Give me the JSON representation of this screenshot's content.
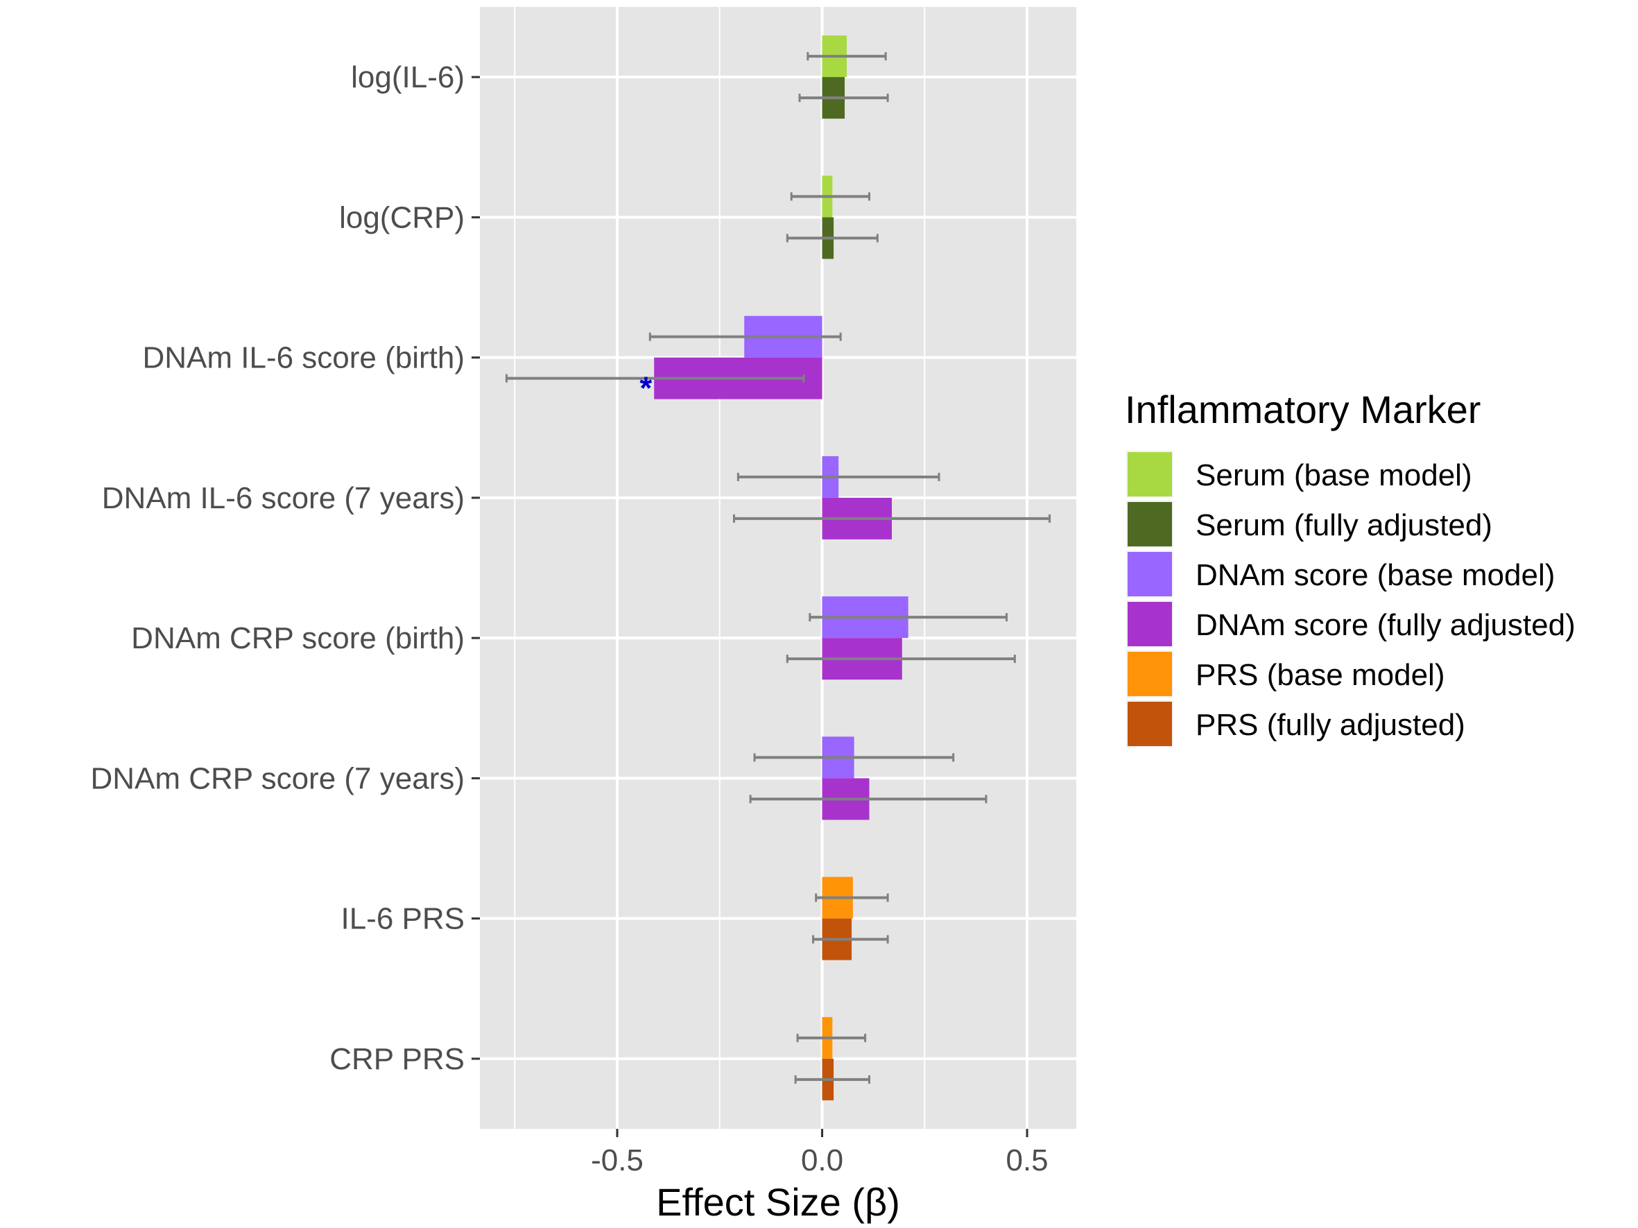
{
  "chart_data": {
    "type": "bar",
    "orientation": "horizontal",
    "xlabel": "Effect Size (β)",
    "ylabel": "",
    "xlim": [
      -0.835,
      0.62
    ],
    "xticks": [
      -0.5,
      0.0,
      0.5
    ],
    "xtick_labels": [
      "-0.5",
      "0.0",
      "0.5"
    ],
    "minor_xticks": [
      -0.75,
      -0.25,
      0.25
    ],
    "grid": true,
    "categories": [
      "log(IL-6)",
      "log(CRP)",
      "DNAm IL-6 score (birth)",
      "DNAm IL-6 score (7 years)",
      "DNAm CRP score (birth)",
      "DNAm CRP score (7 years)",
      "IL-6 PRS",
      "CRP PRS"
    ],
    "legend": {
      "title": "Inflammatory Marker",
      "position": "right",
      "items": [
        {
          "label": "Serum (base model)",
          "color": "#a8d943"
        },
        {
          "label": "Serum (fully adjusted)",
          "color": "#4e6a22"
        },
        {
          "label": "DNAm score (base model)",
          "color": "#9966ff"
        },
        {
          "label": "DNAm score (fully adjusted)",
          "color": "#a733cc"
        },
        {
          "label": "PRS (base model)",
          "color": "#ff9408"
        },
        {
          "label": "PRS (fully adjusted)",
          "color": "#c2530a"
        }
      ]
    },
    "bars": [
      {
        "category": "log(IL-6)",
        "model": "base",
        "legend_item": 0,
        "value": 0.06,
        "ci": [
          -0.035,
          0.155
        ]
      },
      {
        "category": "log(IL-6)",
        "model": "full",
        "legend_item": 1,
        "value": 0.055,
        "ci": [
          -0.055,
          0.16
        ]
      },
      {
        "category": "log(CRP)",
        "model": "base",
        "legend_item": 0,
        "value": 0.025,
        "ci": [
          -0.075,
          0.115
        ]
      },
      {
        "category": "log(CRP)",
        "model": "full",
        "legend_item": 1,
        "value": 0.028,
        "ci": [
          -0.085,
          0.135
        ]
      },
      {
        "category": "DNAm IL-6 score (birth)",
        "model": "base",
        "legend_item": 2,
        "value": -0.19,
        "ci": [
          -0.42,
          0.045
        ]
      },
      {
        "category": "DNAm IL-6 score (birth)",
        "model": "full",
        "legend_item": 3,
        "value": -0.41,
        "ci": [
          -0.77,
          -0.045
        ]
      },
      {
        "category": "DNAm IL-6 score (7 years)",
        "model": "base",
        "legend_item": 2,
        "value": 0.04,
        "ci": [
          -0.205,
          0.285
        ]
      },
      {
        "category": "DNAm IL-6 score (7 years)",
        "model": "full",
        "legend_item": 3,
        "value": 0.17,
        "ci": [
          -0.215,
          0.555
        ]
      },
      {
        "category": "DNAm CRP score (birth)",
        "model": "base",
        "legend_item": 2,
        "value": 0.21,
        "ci": [
          -0.03,
          0.45
        ]
      },
      {
        "category": "DNAm CRP score (birth)",
        "model": "full",
        "legend_item": 3,
        "value": 0.195,
        "ci": [
          -0.085,
          0.47
        ]
      },
      {
        "category": "DNAm CRP score (7 years)",
        "model": "base",
        "legend_item": 2,
        "value": 0.078,
        "ci": [
          -0.165,
          0.32
        ]
      },
      {
        "category": "DNAm CRP score (7 years)",
        "model": "full",
        "legend_item": 3,
        "value": 0.115,
        "ci": [
          -0.175,
          0.4
        ]
      },
      {
        "category": "IL-6 PRS",
        "model": "base",
        "legend_item": 4,
        "value": 0.075,
        "ci": [
          -0.015,
          0.16
        ]
      },
      {
        "category": "IL-6 PRS",
        "model": "full",
        "legend_item": 5,
        "value": 0.072,
        "ci": [
          -0.022,
          0.16
        ]
      },
      {
        "category": "CRP PRS",
        "model": "base",
        "legend_item": 4,
        "value": 0.025,
        "ci": [
          -0.06,
          0.105
        ]
      },
      {
        "category": "CRP PRS",
        "model": "full",
        "legend_item": 5,
        "value": 0.028,
        "ci": [
          -0.065,
          0.115
        ]
      }
    ],
    "annotations": [
      {
        "text": "*",
        "category": "DNAm IL-6 score (birth)",
        "model": "full",
        "x": -0.43,
        "color": "#0000cc"
      }
    ],
    "errorbar_color": "#808080",
    "panel_color": "#e5e5e5",
    "grid_color": "#ffffff"
  }
}
